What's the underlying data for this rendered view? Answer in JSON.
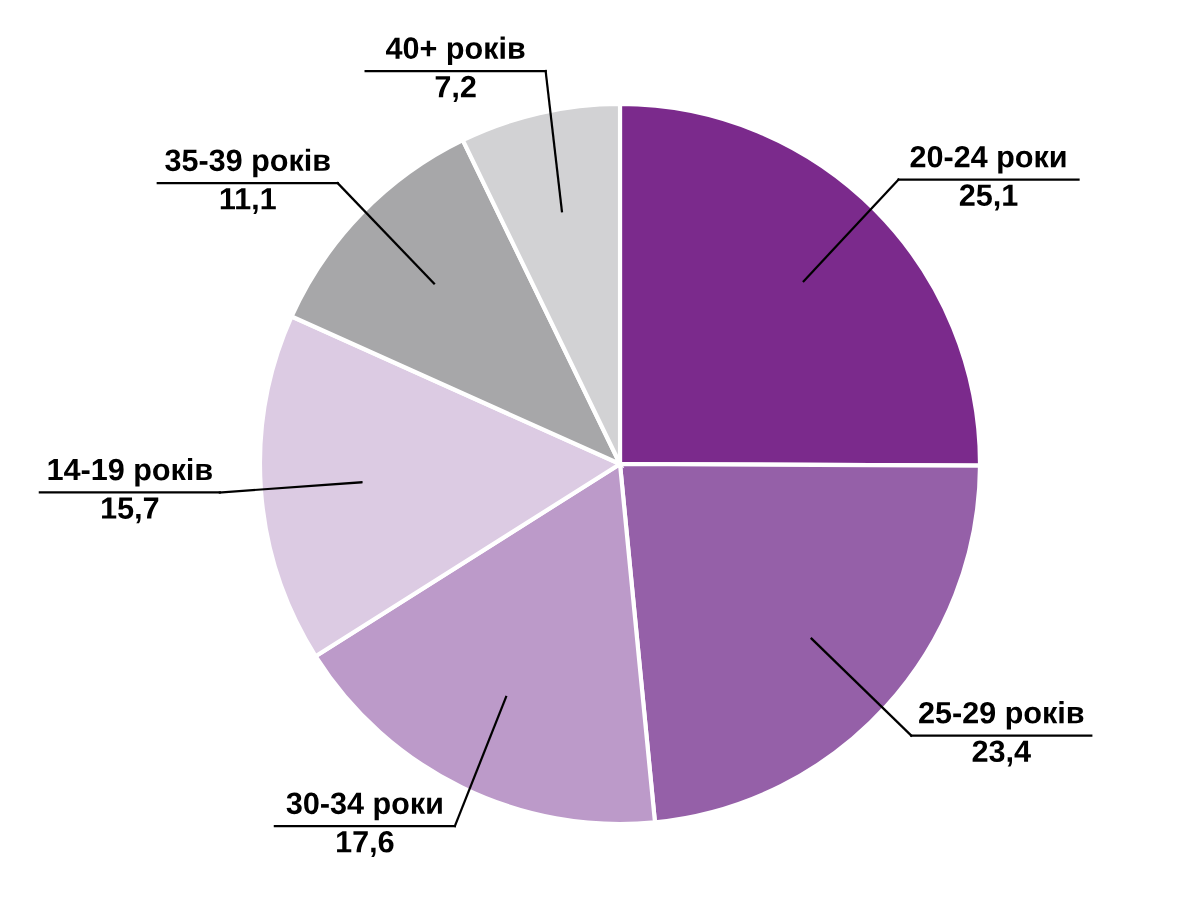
{
  "chart_data": {
    "type": "pie",
    "categories": [
      "20-24 роки",
      "25-29 років",
      "30-34 роки",
      "14-19 років",
      "35-39 років",
      "40+ років"
    ],
    "values": [
      25.1,
      23.4,
      17.6,
      15.7,
      11.1,
      7.2
    ],
    "value_labels": [
      "25,1",
      "23,4",
      "17,6",
      "15,7",
      "11,1",
      "7,2"
    ],
    "colors": [
      "#7b2a8c",
      "#9560a8",
      "#bc9ac9",
      "#dccbe3",
      "#a7a7a9",
      "#d2d2d4"
    ],
    "legend": false
  }
}
